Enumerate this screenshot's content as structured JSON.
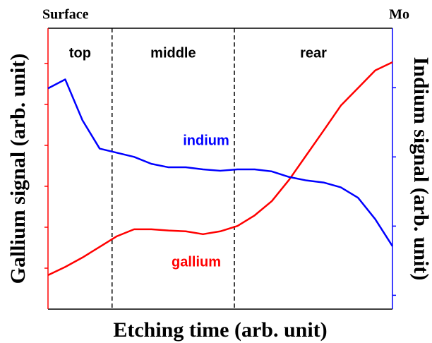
{
  "chart_data": {
    "type": "line",
    "xlabel": "Etching time (arb. unit)",
    "ylabel": "Gallium signal (arb. unit)",
    "y2label": "Indium signal (arb. unit)",
    "left_end_label": "Surface",
    "right_end_label": "Mo",
    "regions": [
      {
        "label": "top",
        "end": 18.6
      },
      {
        "label": "middle",
        "end": 54.1
      },
      {
        "label": "rear"
      }
    ],
    "x": [
      0,
      5,
      10,
      15,
      20,
      25,
      30,
      35,
      40,
      45,
      50,
      55,
      60,
      65,
      70,
      75,
      80,
      85,
      90,
      95,
      100
    ],
    "xlim": [
      0,
      100
    ],
    "ylim": [
      0,
      6.86
    ],
    "yticks": [
      1,
      2,
      3,
      4,
      5,
      6
    ],
    "y2lim": [
      -0.2,
      3.86
    ],
    "y2ticks": [
      0,
      1,
      2,
      3
    ],
    "series": [
      {
        "name": "gallium",
        "color": "#ff0000",
        "values": [
          0.83,
          1.03,
          1.26,
          1.52,
          1.78,
          1.95,
          1.95,
          1.92,
          1.9,
          1.83,
          1.9,
          2.03,
          2.29,
          2.64,
          3.16,
          3.76,
          4.36,
          4.97,
          5.4,
          5.83,
          6.03
        ]
      },
      {
        "name": "indium",
        "color": "#0000ff",
        "axis": "y2",
        "values": [
          2.99,
          3.12,
          2.53,
          2.12,
          2.06,
          2.0,
          1.9,
          1.85,
          1.85,
          1.82,
          1.8,
          1.82,
          1.82,
          1.79,
          1.71,
          1.66,
          1.63,
          1.56,
          1.41,
          1.1,
          0.71
        ]
      }
    ]
  }
}
